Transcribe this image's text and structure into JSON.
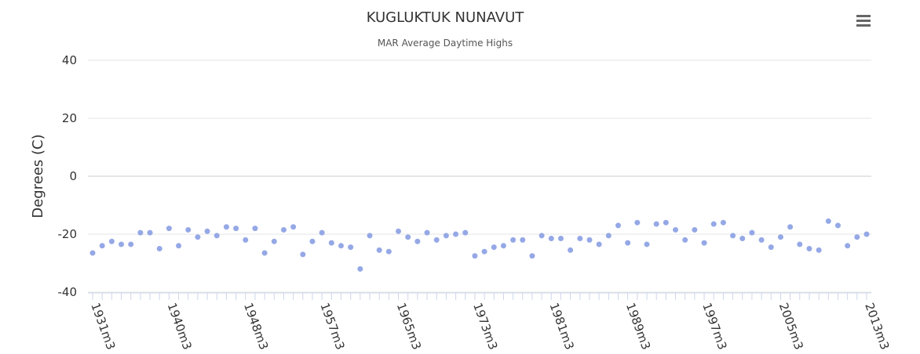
{
  "chart_data": {
    "type": "scatter",
    "title": "KUGLUKTUK NUNAVUT",
    "subtitle": "MAR Average Daytime Highs",
    "y_label": "Degrees (C)",
    "categories": [
      "1931m3",
      null,
      null,
      null,
      null,
      null,
      null,
      null,
      "1940m3",
      null,
      null,
      null,
      null,
      null,
      null,
      null,
      "1948m3",
      null,
      null,
      null,
      null,
      null,
      null,
      null,
      "1957m3",
      null,
      null,
      null,
      null,
      null,
      null,
      null,
      "1965m3",
      null,
      null,
      null,
      null,
      null,
      null,
      null,
      "1973m3",
      null,
      null,
      null,
      null,
      null,
      null,
      null,
      "1981m3",
      null,
      null,
      null,
      null,
      null,
      null,
      null,
      "1989m3",
      null,
      null,
      null,
      null,
      null,
      null,
      null,
      "1997m3",
      null,
      null,
      null,
      null,
      null,
      null,
      null,
      "2005m3",
      null,
      null,
      null,
      null,
      null,
      null,
      null,
      null,
      "2013m3"
    ],
    "series": [
      {
        "color": "#95a8e6",
        "values": [
          -26.5,
          -24,
          -22.5,
          -23.5,
          -23.5,
          -19.5,
          -19.5,
          -25,
          -18,
          -24,
          -18.5,
          -21,
          -19,
          -20.5,
          -17.5,
          -18,
          -22,
          -18,
          -26.5,
          -22.5,
          -18.5,
          -17.5,
          -27,
          -22.5,
          -19.5,
          -23,
          -24,
          -24.5,
          -32,
          -20.5,
          -25.5,
          -26,
          -19,
          -21,
          -22.5,
          -19.5,
          -22,
          -20.5,
          -20,
          -19.5,
          -27.5,
          -26,
          -24.5,
          -24,
          -22,
          -22,
          -27.5,
          -20.5,
          -21.5,
          -21.5,
          -25.5,
          -21.5,
          -22,
          -23.5,
          -20.5,
          -17,
          -23,
          -16,
          -23.5,
          -16.5,
          -16,
          -18.5,
          -22,
          -18.5,
          -23,
          -16.5,
          -16,
          -20.5,
          -21.5,
          -19.5,
          -22,
          -24.5,
          -21,
          -17.5,
          -23.5,
          -25,
          -25.5,
          -15.5,
          -17,
          -24,
          -21,
          -20
        ]
      }
    ],
    "ylim": [
      -40,
      40
    ],
    "yticks": [
      -40,
      -20,
      0,
      20,
      40
    ],
    "grid": true
  }
}
